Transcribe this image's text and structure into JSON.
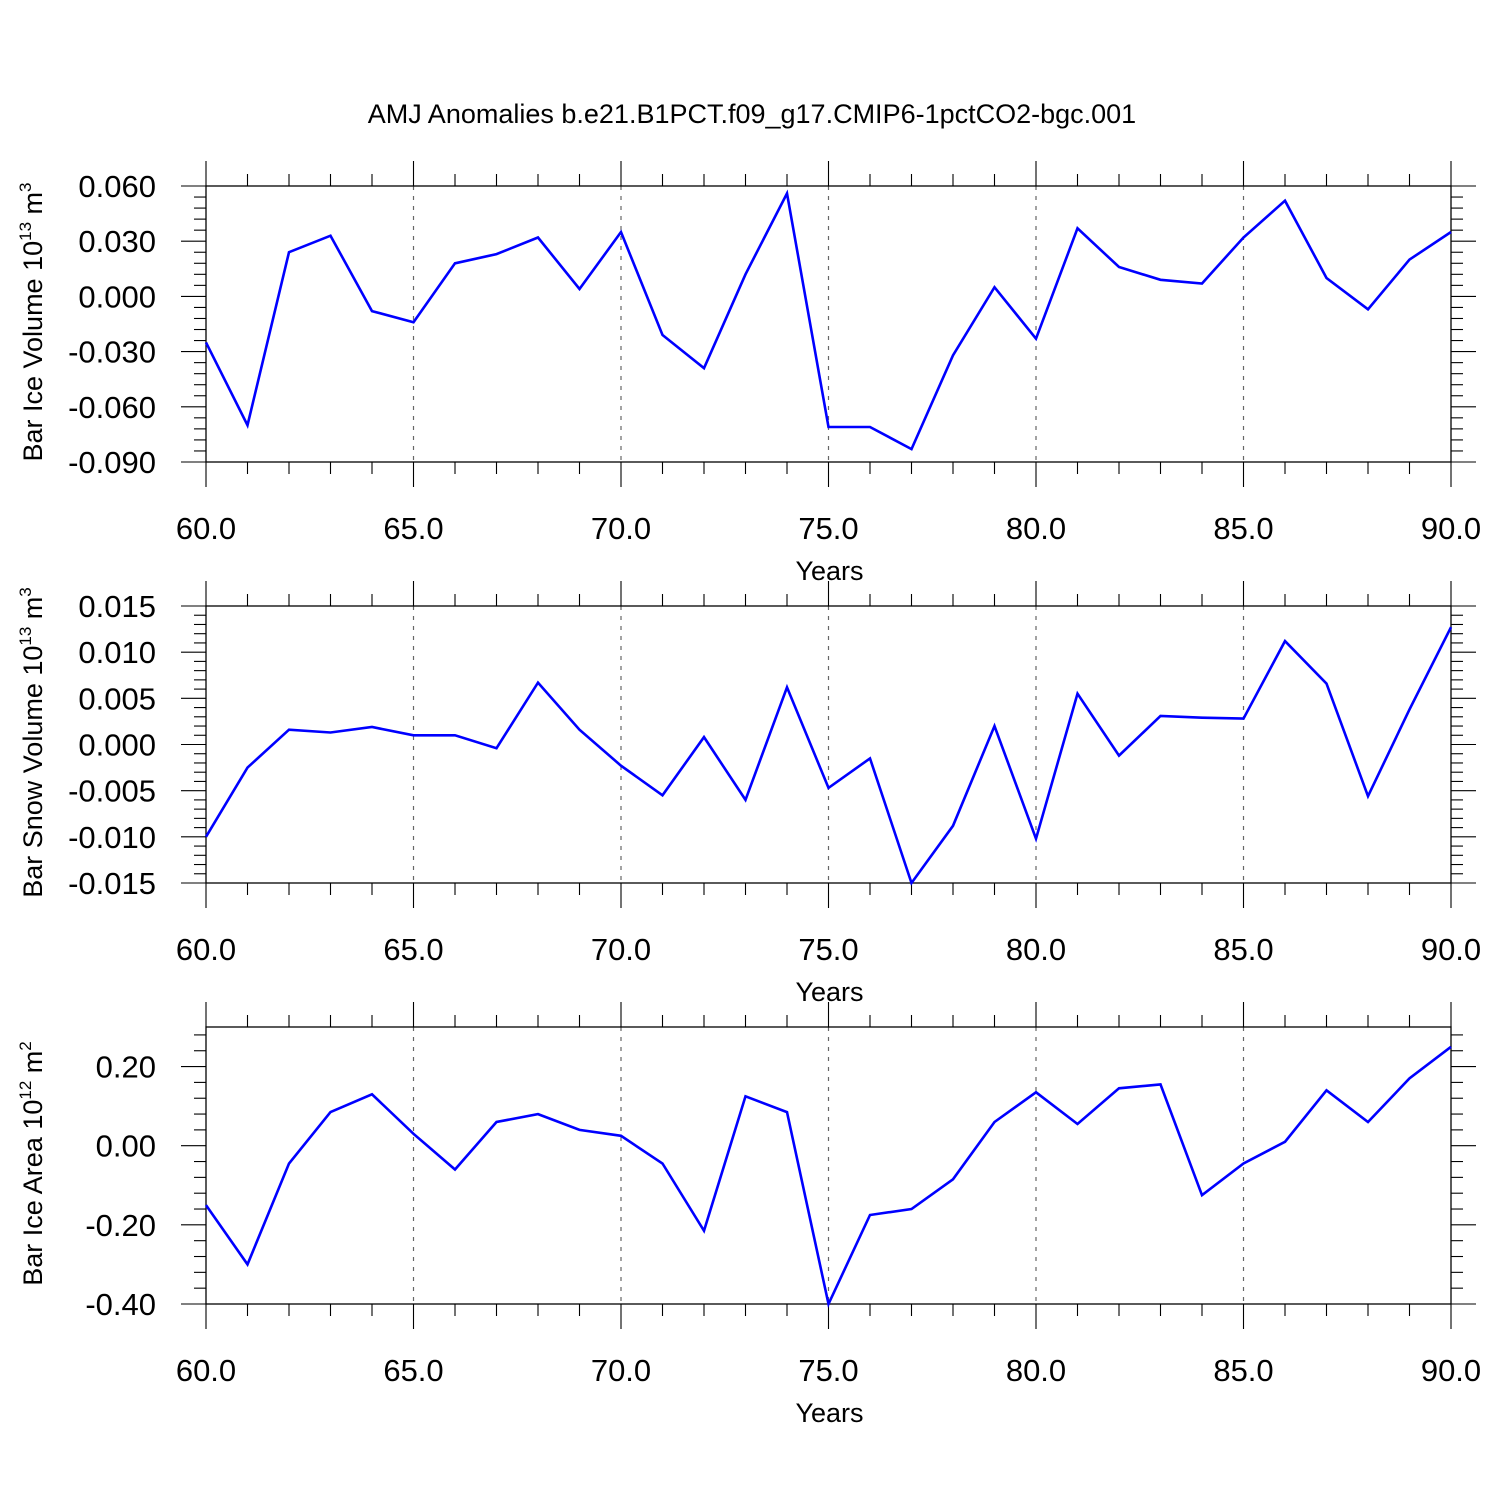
{
  "figure": {
    "title": "AMJ Anomalies b.e21.B1PCT.f09_g17.CMIP6-1pctCO2-bgc.001",
    "line_color": "#0000ff",
    "grid_color": "#666666"
  },
  "chart_data": [
    {
      "type": "line",
      "title": "",
      "xlabel": "Years",
      "ylabel": {
        "text": "Bar Ice Volume 10",
        "sup": "13",
        "unit": " m",
        "unit_sup": "3"
      },
      "xlim": [
        60,
        90
      ],
      "ylim": [
        -0.09,
        0.06
      ],
      "x_ticks": [
        60,
        65,
        70,
        75,
        80,
        85,
        90
      ],
      "x_tick_labels": [
        "60.0",
        "65.0",
        "70.0",
        "75.0",
        "80.0",
        "85.0",
        "90.0"
      ],
      "y_ticks": [
        -0.09,
        -0.06,
        -0.03,
        0.0,
        0.03,
        0.06
      ],
      "y_tick_labels": [
        "-0.090",
        "-0.060",
        "-0.030",
        "0.000",
        "0.030",
        "0.060"
      ],
      "grid": "vertical dashed at x-ticks",
      "series": [
        {
          "x": [
            60,
            61,
            62,
            63,
            64,
            65,
            66,
            67,
            68,
            69,
            70,
            71,
            72,
            73,
            74,
            75,
            76,
            77,
            78,
            79,
            80,
            81,
            82,
            83,
            84,
            85,
            86,
            87,
            88,
            89,
            90
          ],
          "values": [
            -0.025,
            -0.07,
            0.024,
            0.033,
            -0.008,
            -0.014,
            0.018,
            0.023,
            0.032,
            0.004,
            0.035,
            -0.021,
            -0.039,
            0.012,
            0.056,
            -0.071,
            -0.071,
            -0.083,
            -0.032,
            0.005,
            -0.023,
            0.037,
            0.016,
            0.009,
            0.007,
            0.032,
            0.052,
            0.01,
            -0.007,
            0.02,
            0.035
          ]
        }
      ]
    },
    {
      "type": "line",
      "title": "",
      "xlabel": "Years",
      "ylabel": {
        "text": "Bar Snow Volume 10",
        "sup": "13",
        "unit": " m",
        "unit_sup": "3"
      },
      "xlim": [
        60,
        90
      ],
      "ylim": [
        -0.015,
        0.015
      ],
      "x_ticks": [
        60,
        65,
        70,
        75,
        80,
        85,
        90
      ],
      "x_tick_labels": [
        "60.0",
        "65.0",
        "70.0",
        "75.0",
        "80.0",
        "85.0",
        "90.0"
      ],
      "y_ticks": [
        -0.015,
        -0.01,
        -0.005,
        0.0,
        0.005,
        0.01,
        0.015
      ],
      "y_tick_labels": [
        "-0.015",
        "-0.010",
        "-0.005",
        "0.000",
        "0.005",
        "0.010",
        "0.015"
      ],
      "grid": "vertical dashed at x-ticks",
      "series": [
        {
          "x": [
            60,
            61,
            62,
            63,
            64,
            65,
            66,
            67,
            68,
            69,
            70,
            71,
            72,
            73,
            74,
            75,
            76,
            77,
            78,
            79,
            80,
            81,
            82,
            83,
            84,
            85,
            86,
            87,
            88,
            89,
            90
          ],
          "values": [
            -0.01,
            -0.0025,
            0.0016,
            0.0013,
            0.0019,
            0.001,
            0.001,
            -0.0004,
            0.0067,
            0.0016,
            -0.0023,
            -0.0055,
            0.0008,
            -0.006,
            0.0062,
            -0.0047,
            -0.0015,
            -0.015,
            -0.0088,
            0.002,
            -0.0102,
            0.0055,
            -0.0012,
            0.0031,
            0.0029,
            0.0028,
            0.0112,
            0.0066,
            -0.0056,
            0.0038,
            0.0127
          ]
        }
      ]
    },
    {
      "type": "line",
      "title": "",
      "xlabel": "Years",
      "ylabel": {
        "text": "Bar Ice Area 10",
        "sup": "12",
        "unit": " m",
        "unit_sup": "2"
      },
      "xlim": [
        60,
        90
      ],
      "ylim": [
        -0.4,
        0.3
      ],
      "x_ticks": [
        60,
        65,
        70,
        75,
        80,
        85,
        90
      ],
      "x_tick_labels": [
        "60.0",
        "65.0",
        "70.0",
        "75.0",
        "80.0",
        "85.0",
        "90.0"
      ],
      "y_ticks": [
        -0.4,
        -0.2,
        0.0,
        0.2
      ],
      "y_tick_labels": [
        "-0.40",
        "-0.20",
        "0.00",
        "0.20"
      ],
      "grid": "vertical dashed at x-ticks",
      "series": [
        {
          "x": [
            60,
            61,
            62,
            63,
            64,
            65,
            66,
            67,
            68,
            69,
            70,
            71,
            72,
            73,
            74,
            75,
            76,
            77,
            78,
            79,
            80,
            81,
            82,
            83,
            84,
            85,
            86,
            87,
            88,
            89,
            90
          ],
          "values": [
            -0.15,
            -0.3,
            -0.045,
            0.085,
            0.13,
            0.03,
            -0.06,
            0.06,
            0.08,
            0.04,
            0.025,
            -0.045,
            -0.215,
            0.125,
            0.085,
            -0.4,
            -0.175,
            -0.16,
            -0.085,
            0.06,
            0.135,
            0.055,
            0.145,
            0.155,
            -0.125,
            -0.045,
            0.01,
            0.14,
            0.06,
            0.17,
            0.25
          ]
        }
      ]
    }
  ]
}
